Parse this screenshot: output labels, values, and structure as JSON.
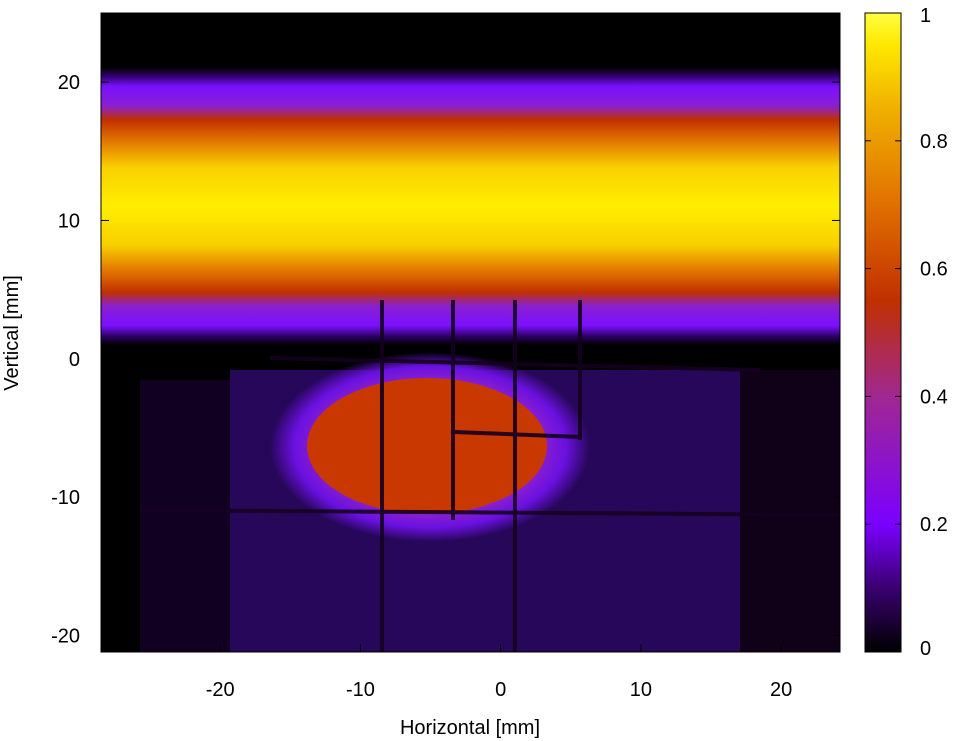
{
  "chart_data": {
    "type": "heatmap",
    "xlabel": "Horizontal [mm]",
    "ylabel": "Vertical [mm]",
    "xlim": [
      -28.5,
      24.2
    ],
    "ylim": [
      -21.2,
      25
    ],
    "xticks": [
      -20,
      -10,
      0,
      10,
      20
    ],
    "yticks": [
      -20,
      -10,
      0,
      10,
      20
    ],
    "colorbar": {
      "range": [
        0,
        1
      ],
      "ticks": [
        0,
        0.2,
        0.4,
        0.6,
        0.8,
        1
      ],
      "colormap": [
        "#000000",
        "#3a0070",
        "#7a00ff",
        "#a02890",
        "#c03000",
        "#e07000",
        "#f0b000",
        "#ffe800",
        "#ffff40"
      ]
    },
    "regions": [
      {
        "name": "top-band",
        "x": [
          -28.5,
          24.2
        ],
        "y": [
          3.5,
          20.5
        ],
        "peak": 0.95
      },
      {
        "name": "lower-spot",
        "center": [
          -5,
          -5.5
        ],
        "half_width": [
          9,
          4.5
        ],
        "value": 0.58
      },
      {
        "name": "lower-halo",
        "x": [
          -18,
          17
        ],
        "y": [
          -21,
          0
        ],
        "value": 0.15
      }
    ],
    "grid_lines_x": [
      -8.5,
      -3.5,
      0.5,
      5.5
    ],
    "grid_lines_y": [
      -10.5,
      0
    ]
  }
}
